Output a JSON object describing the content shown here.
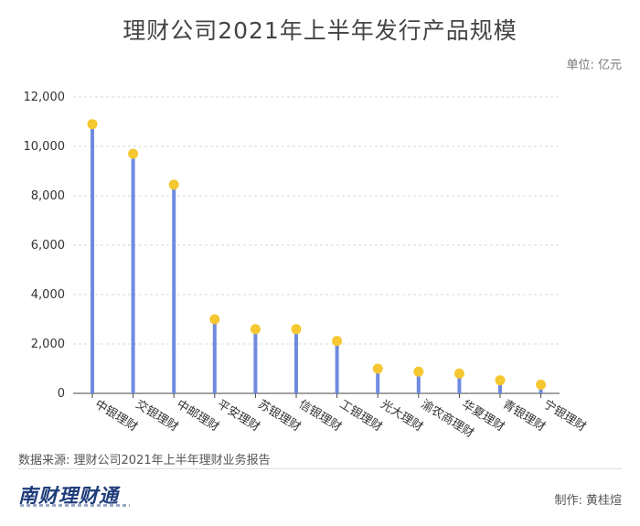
{
  "title": "理财公司2021年上半年发行产品规模",
  "unit_label": "单位: 亿元",
  "source": "数据来源: 理财公司2021年上半年理财业务报告",
  "logo_text": "南财理财通",
  "author": "制作: 黄桂煊",
  "colors": {
    "stem": "#6f8ae0",
    "dot": "#f5c730",
    "grid": "#d9d9d9",
    "axis": "#444444",
    "text": "#333333"
  },
  "chart_data": {
    "type": "bar",
    "style": "lollipop",
    "title": "理财公司2021年上半年发行产品规模",
    "xlabel": "",
    "ylabel": "",
    "ylim": [
      0,
      12000
    ],
    "yticks": [
      0,
      2000,
      4000,
      6000,
      8000,
      10000,
      12000
    ],
    "ytick_labels": [
      "0",
      "2,000",
      "4,000",
      "6,000",
      "8,000",
      "10,000",
      "12,000"
    ],
    "grid": true,
    "categories": [
      "中银理财",
      "交银理财",
      "中邮理财",
      "平安理财",
      "苏银理财",
      "信银理财",
      "工银理财",
      "光大理财",
      "渝农商理财",
      "华夏理财",
      "青银理财",
      "宁银理财"
    ],
    "values": [
      10900,
      9700,
      8450,
      3000,
      2600,
      2600,
      2120,
      1000,
      880,
      800,
      530,
      350
    ]
  }
}
